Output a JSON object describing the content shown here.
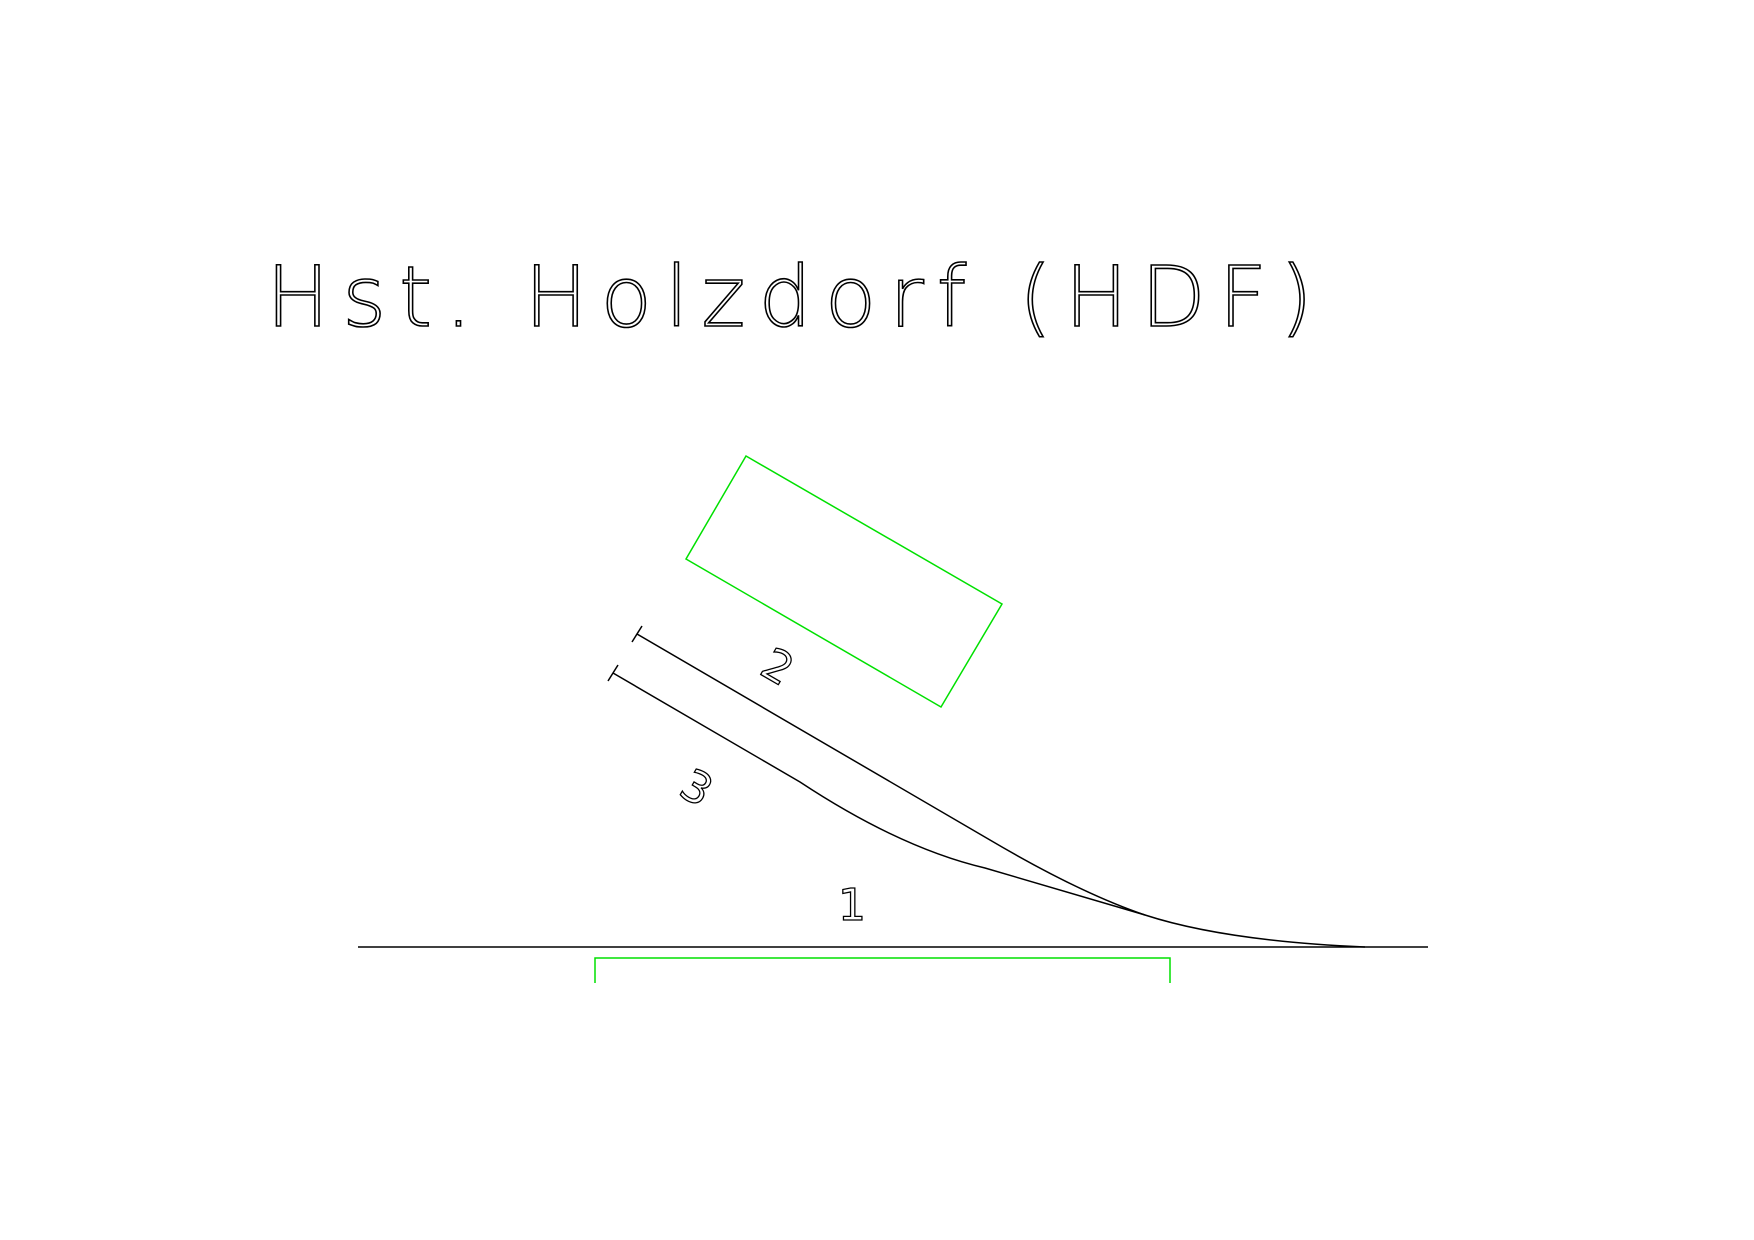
{
  "title": "Hst. Holzdorf (HDF)",
  "tracks": {
    "main": {
      "label": "1"
    },
    "siding_upper": {
      "label": "2"
    },
    "siding_lower": {
      "label": "3"
    }
  },
  "colors": {
    "track": "#000000",
    "platform": "#00e000",
    "background": "#ffffff"
  }
}
